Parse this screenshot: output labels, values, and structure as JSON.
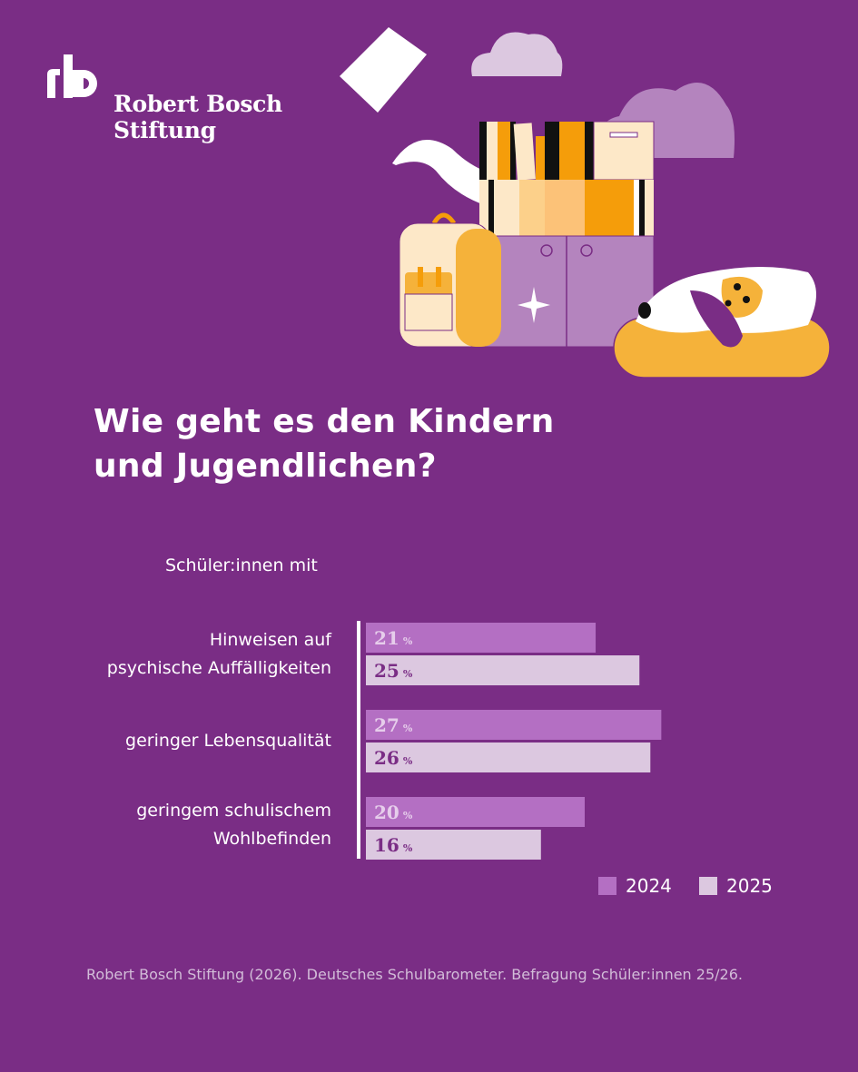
{
  "brand": {
    "mark": "rb",
    "line1": "Robert Bosch",
    "line2": "Stiftung"
  },
  "title_line1": "Wie geht es den Kindern",
  "title_line2": "und Jugendlichen?",
  "chart_data": {
    "type": "bar",
    "orientation": "horizontal",
    "subtitle": "Schüler:innen mit",
    "categories": [
      [
        "Hinweisen auf",
        "psychische Auffälligkeiten"
      ],
      [
        "geringer Lebensqualität"
      ],
      [
        "geringem schulischem",
        "Wohlbefinden"
      ]
    ],
    "series": [
      {
        "name": "2024",
        "color": "#b46fc3",
        "label_color": "#e6cdeb",
        "values": [
          21,
          27,
          20
        ]
      },
      {
        "name": "2025",
        "color": "#dcc8e0",
        "label_color": "#7a2d85",
        "values": [
          25,
          26,
          16
        ]
      }
    ],
    "unit": "%",
    "legend": "bottom-right",
    "axis_color": "#ffffff"
  },
  "source": "Robert Bosch Stiftung (2026). Deutsches Schulbarometer. Befragung Schüler:innen 25/26."
}
